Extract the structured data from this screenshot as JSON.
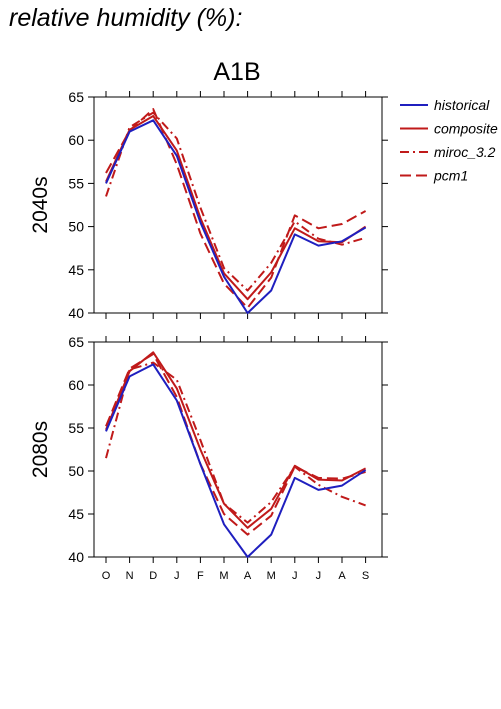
{
  "page_title": "relative humidity (%):",
  "colors": {
    "historical": "#1f1fbf",
    "model": "#c01a1a",
    "axis": "#000000"
  },
  "chart_data": {
    "type": "line",
    "scenario": "A1B",
    "categories": [
      "O",
      "N",
      "D",
      "J",
      "F",
      "M",
      "A",
      "M",
      "J",
      "J",
      "A",
      "S"
    ],
    "ylim": [
      40,
      65
    ],
    "yticks": [
      40,
      45,
      50,
      55,
      60,
      65
    ],
    "grid": false,
    "legend_position": "top-right, outside plot",
    "legend": [
      {
        "label": "historical",
        "style": "solid",
        "color": "#1f1fbf"
      },
      {
        "label": "composite",
        "style": "solid",
        "color": "#c01a1a"
      },
      {
        "label": "miroc_3.2",
        "style": "dashdot",
        "color": "#c01a1a"
      },
      {
        "label": "pcm1",
        "style": "dashed",
        "color": "#c01a1a"
      }
    ],
    "panels": [
      {
        "label": "2040s",
        "series": [
          {
            "name": "historical",
            "values": [
              55.0,
              61.0,
              62.3,
              58.2,
              50.5,
              44.2,
              40.0,
              42.6,
              49.1,
              47.8,
              48.3,
              49.9
            ]
          },
          {
            "name": "composite",
            "values": [
              55.2,
              61.2,
              62.8,
              58.8,
              51.0,
              44.6,
              41.6,
              44.7,
              49.8,
              48.3,
              48.2,
              50.0
            ]
          },
          {
            "name": "miroc_3.2",
            "values": [
              53.5,
              61.5,
              63.2,
              60.2,
              52.2,
              45.2,
              42.6,
              45.8,
              50.6,
              48.6,
              47.9,
              48.7
            ]
          },
          {
            "name": "pcm1",
            "values": [
              56.2,
              61.1,
              63.6,
              57.2,
              49.2,
              43.4,
              40.6,
              44.1,
              51.3,
              49.8,
              50.3,
              51.8
            ]
          }
        ]
      },
      {
        "label": "2080s",
        "series": [
          {
            "name": "historical",
            "values": [
              54.6,
              61.0,
              62.4,
              58.2,
              50.8,
              43.8,
              40.0,
              42.6,
              49.2,
              47.8,
              48.3,
              50.1
            ]
          },
          {
            "name": "composite",
            "values": [
              54.8,
              61.6,
              63.8,
              59.6,
              52.5,
              46.2,
              43.4,
              45.6,
              50.6,
              49.0,
              48.9,
              50.3
            ]
          },
          {
            "name": "miroc_3.2",
            "values": [
              51.5,
              61.8,
              62.6,
              60.6,
              53.6,
              46.2,
              44.0,
              46.4,
              50.5,
              48.4,
              47.0,
              46.0
            ]
          },
          {
            "name": "pcm1",
            "values": [
              55.2,
              61.9,
              63.6,
              58.6,
              50.8,
              45.0,
              42.6,
              44.8,
              50.5,
              49.2,
              49.1,
              49.9
            ]
          }
        ]
      }
    ]
  }
}
